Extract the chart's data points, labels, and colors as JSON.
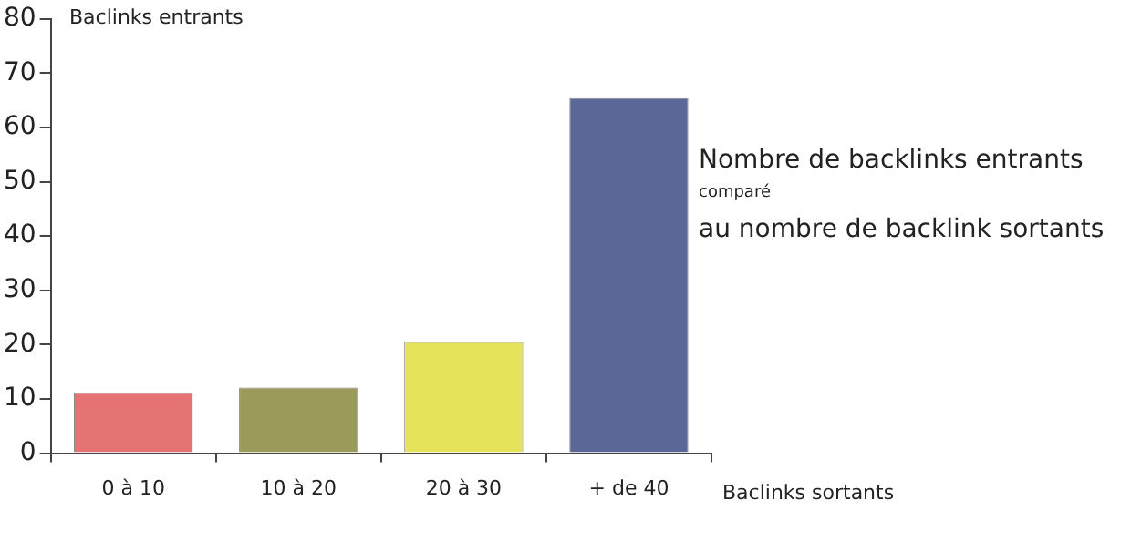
{
  "chart_data": {
    "type": "bar",
    "title": "Nombre de backlinks entrants",
    "subtitle": "comparé",
    "annotations": [
      "au nombre de backlink sortants"
    ],
    "xlabel": "Baclinks sortants",
    "ylabel": "Baclinks entrants",
    "categories": [
      "0 à 10",
      "10 à 20",
      "20 à 30",
      "+ de 40"
    ],
    "values": [
      11.1,
      12.1,
      20.5,
      65.4
    ],
    "colors": [
      "#e57373",
      "#9a9a5a",
      "#e5e35a",
      "#5b6897"
    ],
    "ylim": [
      0,
      80
    ],
    "yticks": [
      0,
      10,
      20,
      30,
      40,
      50,
      60,
      70,
      80
    ],
    "grid": false,
    "legend": false
  }
}
